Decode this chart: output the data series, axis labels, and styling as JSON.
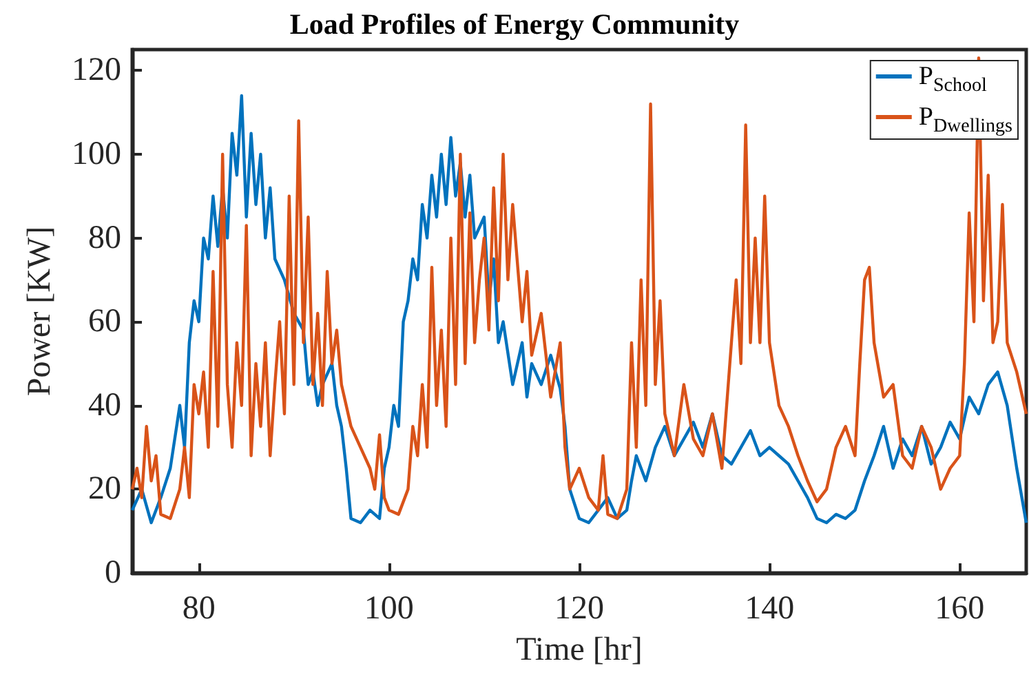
{
  "chart_data": {
    "type": "line",
    "title": "Load Profiles of Energy Community",
    "xlabel": "Time [hr]",
    "ylabel": "Power [KW]",
    "xlim": [
      73,
      167
    ],
    "xticks": [
      80,
      100,
      120,
      140,
      160
    ],
    "ylim": [
      0,
      125
    ],
    "yticks": [
      0,
      20,
      40,
      60,
      80,
      100,
      120
    ],
    "grid": false,
    "legend": "top right",
    "marker": "none",
    "line_style": "solid",
    "series": [
      {
        "name": "P$_{School}$",
        "color": "#0072bd",
        "x": [
          73,
          74,
          75,
          76,
          77,
          78,
          78.5,
          79,
          79.5,
          80,
          80.5,
          81,
          81.5,
          82,
          82.5,
          83,
          83.5,
          84,
          84.5,
          85,
          85.5,
          86,
          86.5,
          87,
          87.5,
          88,
          89,
          90,
          91,
          91.5,
          92,
          92.5,
          93,
          94,
          94.5,
          95,
          95.5,
          96,
          97,
          98,
          99,
          99.5,
          100,
          100.5,
          101,
          101.5,
          102,
          102.5,
          103,
          103.5,
          104,
          104.5,
          105,
          105.5,
          106,
          106.5,
          107,
          107.5,
          108,
          108.5,
          109,
          110,
          110.5,
          111,
          111.5,
          112,
          113,
          114,
          114.5,
          115,
          116,
          117,
          118,
          118.5,
          119,
          120,
          121,
          122,
          123,
          124,
          125,
          125.5,
          126,
          127,
          128,
          129,
          130,
          131,
          132,
          133,
          134,
          135,
          136,
          137,
          138,
          139,
          140,
          141,
          142,
          143,
          144,
          145,
          146,
          147,
          148,
          149,
          150,
          151,
          152,
          153,
          154,
          155,
          156,
          157,
          158,
          159,
          160,
          161,
          162,
          163,
          164,
          165,
          166,
          167
        ],
        "values": [
          15,
          20,
          12,
          18,
          25,
          40,
          30,
          55,
          65,
          60,
          80,
          75,
          90,
          78,
          92,
          80,
          105,
          95,
          114,
          85,
          105,
          88,
          100,
          80,
          92,
          75,
          70,
          62,
          58,
          45,
          48,
          40,
          45,
          50,
          40,
          35,
          25,
          13,
          12,
          15,
          13,
          25,
          30,
          40,
          35,
          60,
          65,
          75,
          70,
          88,
          80,
          95,
          85,
          100,
          88,
          104,
          90,
          98,
          85,
          95,
          80,
          85,
          65,
          75,
          55,
          60,
          45,
          55,
          42,
          50,
          45,
          52,
          44,
          35,
          20,
          13,
          12,
          15,
          18,
          13,
          15,
          22,
          28,
          22,
          30,
          35,
          28,
          32,
          36,
          30,
          38,
          28,
          26,
          30,
          34,
          28,
          30,
          28,
          26,
          22,
          18,
          13,
          12,
          14,
          13,
          15,
          22,
          28,
          35,
          25,
          32,
          28,
          35,
          26,
          30,
          36,
          32,
          42,
          38,
          45,
          48,
          40,
          25,
          12
        ]
      },
      {
        "name": "P$_{Dwellings}$",
        "color": "#d95319",
        "x": [
          73,
          73.5,
          74,
          74.5,
          75,
          75.5,
          76,
          77,
          78,
          78.5,
          79,
          79.5,
          80,
          80.5,
          81,
          81.5,
          82,
          82.5,
          83,
          83.5,
          84,
          84.5,
          85,
          85.5,
          86,
          86.5,
          87,
          87.5,
          88,
          88.5,
          89,
          89.5,
          90,
          90.5,
          91,
          91.5,
          92,
          92.5,
          93,
          93.5,
          94,
          94.5,
          95,
          96,
          97,
          98,
          98.5,
          99,
          99.5,
          100,
          101,
          102,
          102.5,
          103,
          103.5,
          104,
          104.5,
          105,
          105.5,
          106,
          106.5,
          107,
          107.5,
          108,
          108.5,
          109,
          109.5,
          110,
          110.5,
          111,
          111.5,
          112,
          112.5,
          113,
          114,
          114.5,
          115,
          116,
          117,
          118,
          118.5,
          119,
          120,
          121,
          122,
          122.5,
          123,
          124,
          125,
          125.5,
          126,
          126.5,
          127,
          127.5,
          128,
          128.5,
          129,
          130,
          131,
          132,
          133,
          134,
          135,
          136,
          136.5,
          137,
          137.5,
          138,
          138.5,
          139,
          139.5,
          140,
          141,
          142,
          143,
          144,
          145,
          146,
          147,
          148,
          149,
          149.5,
          150,
          150.5,
          151,
          152,
          153,
          154,
          155,
          156,
          157,
          158,
          159,
          160,
          160.5,
          161,
          161.5,
          162,
          162.5,
          163,
          163.5,
          164,
          164.5,
          165,
          166,
          167
        ],
        "values": [
          20,
          25,
          18,
          35,
          22,
          28,
          14,
          13,
          20,
          30,
          18,
          45,
          38,
          48,
          30,
          72,
          35,
          100,
          45,
          30,
          55,
          40,
          83,
          28,
          50,
          35,
          55,
          28,
          45,
          60,
          38,
          90,
          45,
          108,
          55,
          85,
          45,
          62,
          40,
          72,
          50,
          58,
          45,
          35,
          30,
          25,
          20,
          33,
          18,
          15,
          14,
          20,
          35,
          28,
          45,
          30,
          73,
          40,
          58,
          35,
          80,
          45,
          100,
          50,
          86,
          55,
          70,
          80,
          58,
          92,
          65,
          100,
          70,
          88,
          60,
          72,
          52,
          62,
          42,
          55,
          30,
          20,
          25,
          18,
          15,
          28,
          14,
          13,
          20,
          55,
          30,
          70,
          40,
          112,
          45,
          65,
          38,
          28,
          45,
          32,
          28,
          38,
          25,
          55,
          70,
          50,
          107,
          55,
          80,
          55,
          90,
          55,
          40,
          35,
          28,
          22,
          17,
          20,
          30,
          35,
          28,
          50,
          70,
          73,
          55,
          42,
          45,
          28,
          25,
          35,
          30,
          20,
          25,
          28,
          50,
          86,
          60,
          123,
          65,
          95,
          55,
          60,
          88,
          55,
          48,
          38
        ]
      }
    ]
  }
}
